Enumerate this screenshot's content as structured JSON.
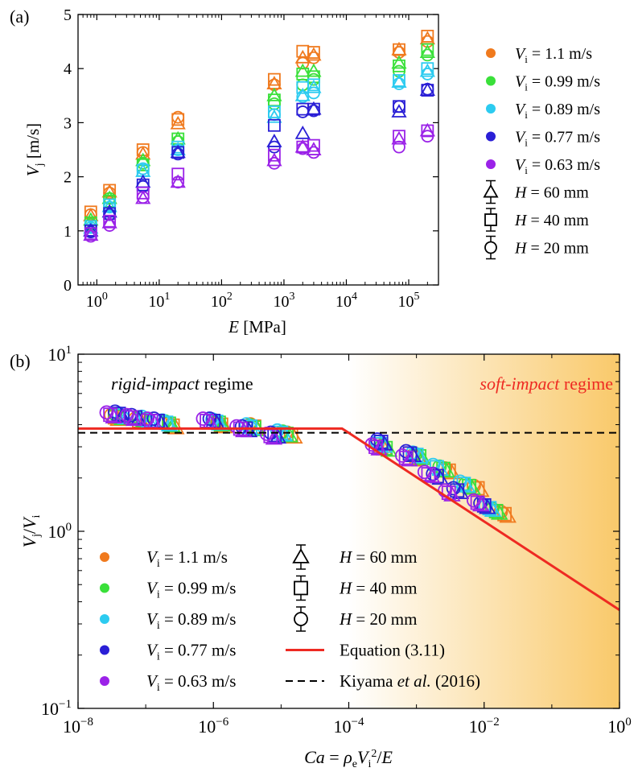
{
  "chart_data": [
    {
      "panel": "(a)",
      "type": "scatter",
      "xscale": "log",
      "xlim": [
        0.5,
        300000
      ],
      "ylim": [
        0,
        5
      ],
      "xlabel_main": "E",
      "xlabel_unit": " [MPa]",
      "ylabel_main": "V",
      "ylabel_sub": "j",
      "ylabel_unit": " [m/s]",
      "yticks": [
        "0",
        "1",
        "2",
        "3",
        "4",
        "5"
      ],
      "xtick_base": "10",
      "xtick_exps": [
        "0",
        "1",
        "2",
        "3",
        "4",
        "5"
      ],
      "legend_position": "right",
      "legend": [
        {
          "kind": "dot",
          "color": "#f07a1e",
          "pre": "V",
          "sub": "i",
          "text": " = 1.1 m/s"
        },
        {
          "kind": "dot",
          "color": "#3ae03a",
          "pre": "V",
          "sub": "i",
          "text": " = 0.99 m/s"
        },
        {
          "kind": "dot",
          "color": "#2ccbf0",
          "pre": "V",
          "sub": "i",
          "text": " = 0.89 m/s"
        },
        {
          "kind": "dot",
          "color": "#2a1fd6",
          "pre": "V",
          "sub": "i",
          "text": " = 0.77 m/s"
        },
        {
          "kind": "dot",
          "color": "#9b22e8",
          "pre": "V",
          "sub": "i",
          "text": " = 0.63 m/s"
        },
        {
          "kind": "triangle",
          "pre": "H",
          "sub": "",
          "text": " = 60 mm"
        },
        {
          "kind": "square",
          "pre": "H",
          "sub": "",
          "text": " = 40 mm"
        },
        {
          "kind": "circle",
          "pre": "H",
          "sub": "",
          "text": " = 20 mm"
        }
      ],
      "x_values_MPa": [
        0.8,
        1.6,
        5.5,
        20,
        700,
        2000,
        3000,
        70000,
        200000
      ],
      "series": [
        {
          "name": "Vi = 1.1 m/s",
          "color": "#f07a1e",
          "H60": [
            1.28,
            1.72,
            2.42,
            2.98,
            3.72,
            4.2,
            4.25,
            4.35,
            4.55
          ],
          "H40": [
            1.35,
            1.75,
            2.5,
            3.06,
            3.8,
            4.32,
            4.3,
            4.35,
            4.6
          ],
          "H20": [
            1.3,
            1.7,
            2.45,
            3.1,
            3.7,
            4.1,
            4.2,
            4.3,
            4.5
          ]
        },
        {
          "name": "Vi = 0.99 m/s",
          "color": "#3ae03a",
          "H60": [
            1.2,
            1.6,
            2.3,
            2.7,
            3.5,
            3.95,
            3.95,
            4.1,
            4.3
          ],
          "H40": [
            1.15,
            1.55,
            2.22,
            2.7,
            3.42,
            3.9,
            3.85,
            4.05,
            4.35
          ],
          "H20": [
            1.12,
            1.6,
            2.25,
            2.65,
            3.35,
            3.7,
            3.8,
            3.95,
            4.25
          ]
        },
        {
          "name": "Vi = 0.89 m/s",
          "color": "#2ccbf0",
          "H60": [
            1.05,
            1.45,
            2.1,
            2.5,
            3.1,
            3.5,
            3.65,
            3.75,
            3.95
          ],
          "H40": [
            1.08,
            1.48,
            2.12,
            2.55,
            3.2,
            3.65,
            3.7,
            3.78,
            4.0
          ],
          "H20": [
            1.06,
            1.44,
            2.15,
            2.5,
            3.15,
            3.48,
            3.55,
            3.72,
            3.9
          ]
        },
        {
          "name": "Vi = 0.77 m/s",
          "color": "#2a1fd6",
          "H60": [
            1.0,
            1.35,
            1.9,
            2.45,
            2.65,
            2.8,
            3.25,
            3.2,
            3.6
          ],
          "H40": [
            1.0,
            1.32,
            1.85,
            2.45,
            2.95,
            3.25,
            3.25,
            3.3,
            3.6
          ],
          "H20": [
            0.98,
            1.3,
            1.82,
            2.42,
            2.55,
            3.2,
            3.22,
            3.3,
            3.62
          ]
        },
        {
          "name": "Vi = 0.63 m/s",
          "color": "#9b22e8",
          "H60": [
            0.92,
            1.15,
            1.6,
            1.9,
            2.3,
            2.55,
            2.5,
            2.7,
            2.85
          ],
          "H40": [
            0.95,
            1.18,
            1.7,
            2.05,
            2.4,
            2.55,
            2.58,
            2.75,
            2.85
          ],
          "H20": [
            0.9,
            1.1,
            1.62,
            1.9,
            2.25,
            2.52,
            2.45,
            2.55,
            2.75
          ]
        }
      ]
    },
    {
      "panel": "(b)",
      "type": "scatter",
      "xscale": "log",
      "yscale": "log",
      "xlim": [
        1e-08,
        1
      ],
      "ylim": [
        0.1,
        10
      ],
      "xlabel": "Ca = ρeVi²/E",
      "ylabel": "Vj/Vi",
      "xtick_base": "10",
      "xtick_exps": [
        "−8",
        "−6",
        "−4",
        "−2",
        "0"
      ],
      "ytick_exps": [
        "−1",
        "0",
        "1"
      ],
      "annotations": {
        "rigid_italic": "rigid-impact",
        "rigid_rest": " regime",
        "soft_italic": "soft-impact",
        "soft_rest": " regime"
      },
      "shading": {
        "start_Ca": 0.0001,
        "color_from": "#ffffff",
        "color_to": "#f9c96a"
      },
      "legend_position": "lower-left",
      "legend_left": [
        {
          "color": "#f07a1e",
          "pre": "V",
          "sub": "i",
          "text": " = 1.1 m/s"
        },
        {
          "color": "#3ae03a",
          "pre": "V",
          "sub": "i",
          "text": " = 0.99 m/s"
        },
        {
          "color": "#2ccbf0",
          "pre": "V",
          "sub": "i",
          "text": " = 0.89 m/s"
        },
        {
          "color": "#2a1fd6",
          "pre": "V",
          "sub": "i",
          "text": " = 0.77 m/s"
        },
        {
          "color": "#9b22e8",
          "pre": "V",
          "sub": "i",
          "text": " = 0.63 m/s"
        }
      ],
      "legend_right": [
        {
          "kind": "triangle",
          "text": "H = 60 mm"
        },
        {
          "kind": "square",
          "text": "H = 40 mm"
        },
        {
          "kind": "circle",
          "text": "H = 20 mm"
        },
        {
          "kind": "redline",
          "text": "Equation (3.11)"
        },
        {
          "kind": "dashline",
          "pre": "Kiyama ",
          "italic": "et al.",
          "post": " (2016)"
        }
      ],
      "equation_line": {
        "name": "Equation (3.11)",
        "color": "#ee2a22",
        "plateau": 3.8,
        "knee_Ca": 8e-05,
        "slope": -0.25
      },
      "reference_line": {
        "name": "Kiyama et al. (2016)",
        "color": "#000000",
        "value": 3.6
      },
      "series": [
        {
          "name": "Vi = 1.1 m/s",
          "color": "#f07a1e",
          "points": [
            [
              3.5e-08,
              4.4
            ],
            [
              8e-08,
              4.2
            ],
            [
              2.5e-07,
              3.95
            ],
            [
              1.3e-06,
              4.0
            ],
            [
              4e-06,
              3.9
            ],
            [
              1.4e-05,
              3.5
            ],
            [
              0.0003,
              3.0
            ],
            [
              0.001,
              2.6
            ],
            [
              0.003,
              2.2
            ],
            [
              0.008,
              1.75
            ],
            [
              0.02,
              1.25
            ]
          ]
        },
        {
          "name": "Vi = 0.99 m/s",
          "color": "#3ae03a",
          "points": [
            [
              4e-08,
              4.45
            ],
            [
              9e-08,
              4.25
            ],
            [
              2.2e-07,
              4.05
            ],
            [
              1.2e-06,
              4.1
            ],
            [
              4e-06,
              3.85
            ],
            [
              1.2e-05,
              3.55
            ],
            [
              0.00035,
              2.95
            ],
            [
              0.0011,
              2.65
            ],
            [
              0.0025,
              2.25
            ],
            [
              0.006,
              1.8
            ],
            [
              0.015,
              1.3
            ]
          ]
        },
        {
          "name": "Vi = 0.89 m/s",
          "color": "#2ccbf0",
          "points": [
            [
              4.5e-08,
              4.5
            ],
            [
              1e-07,
              4.3
            ],
            [
              2e-07,
              4.1
            ],
            [
              1.1e-06,
              4.15
            ],
            [
              3.5e-06,
              3.9
            ],
            [
              1e-05,
              3.6
            ],
            [
              0.0003,
              3.1
            ],
            [
              0.001,
              2.7
            ],
            [
              0.002,
              2.3
            ],
            [
              0.005,
              1.85
            ],
            [
              0.012,
              1.35
            ]
          ]
        },
        {
          "name": "Vi = 0.77 m/s",
          "color": "#2a1fd6",
          "points": [
            [
              4e-08,
              4.6
            ],
            [
              7e-08,
              4.4
            ],
            [
              1.5e-07,
              4.2
            ],
            [
              1e-06,
              4.2
            ],
            [
              3e-06,
              3.8
            ],
            [
              8e-06,
              3.5
            ],
            [
              0.0003,
              3.2
            ],
            [
              0.0008,
              2.75
            ],
            [
              0.002,
              2.05
            ],
            [
              0.004,
              1.7
            ],
            [
              0.01,
              1.4
            ]
          ]
        },
        {
          "name": "Vi = 0.63 m/s",
          "color": "#9b22e8",
          "points": [
            [
              3e-08,
              4.55
            ],
            [
              6e-08,
              4.4
            ],
            [
              1.2e-07,
              4.2
            ],
            [
              8e-07,
              4.2
            ],
            [
              2.5e-06,
              3.8
            ],
            [
              7e-06,
              3.45
            ],
            [
              0.00025,
              3.0
            ],
            [
              0.0007,
              2.6
            ],
            [
              0.0015,
              2.1
            ],
            [
              0.003,
              1.65
            ],
            [
              0.008,
              1.45
            ]
          ]
        }
      ]
    }
  ]
}
